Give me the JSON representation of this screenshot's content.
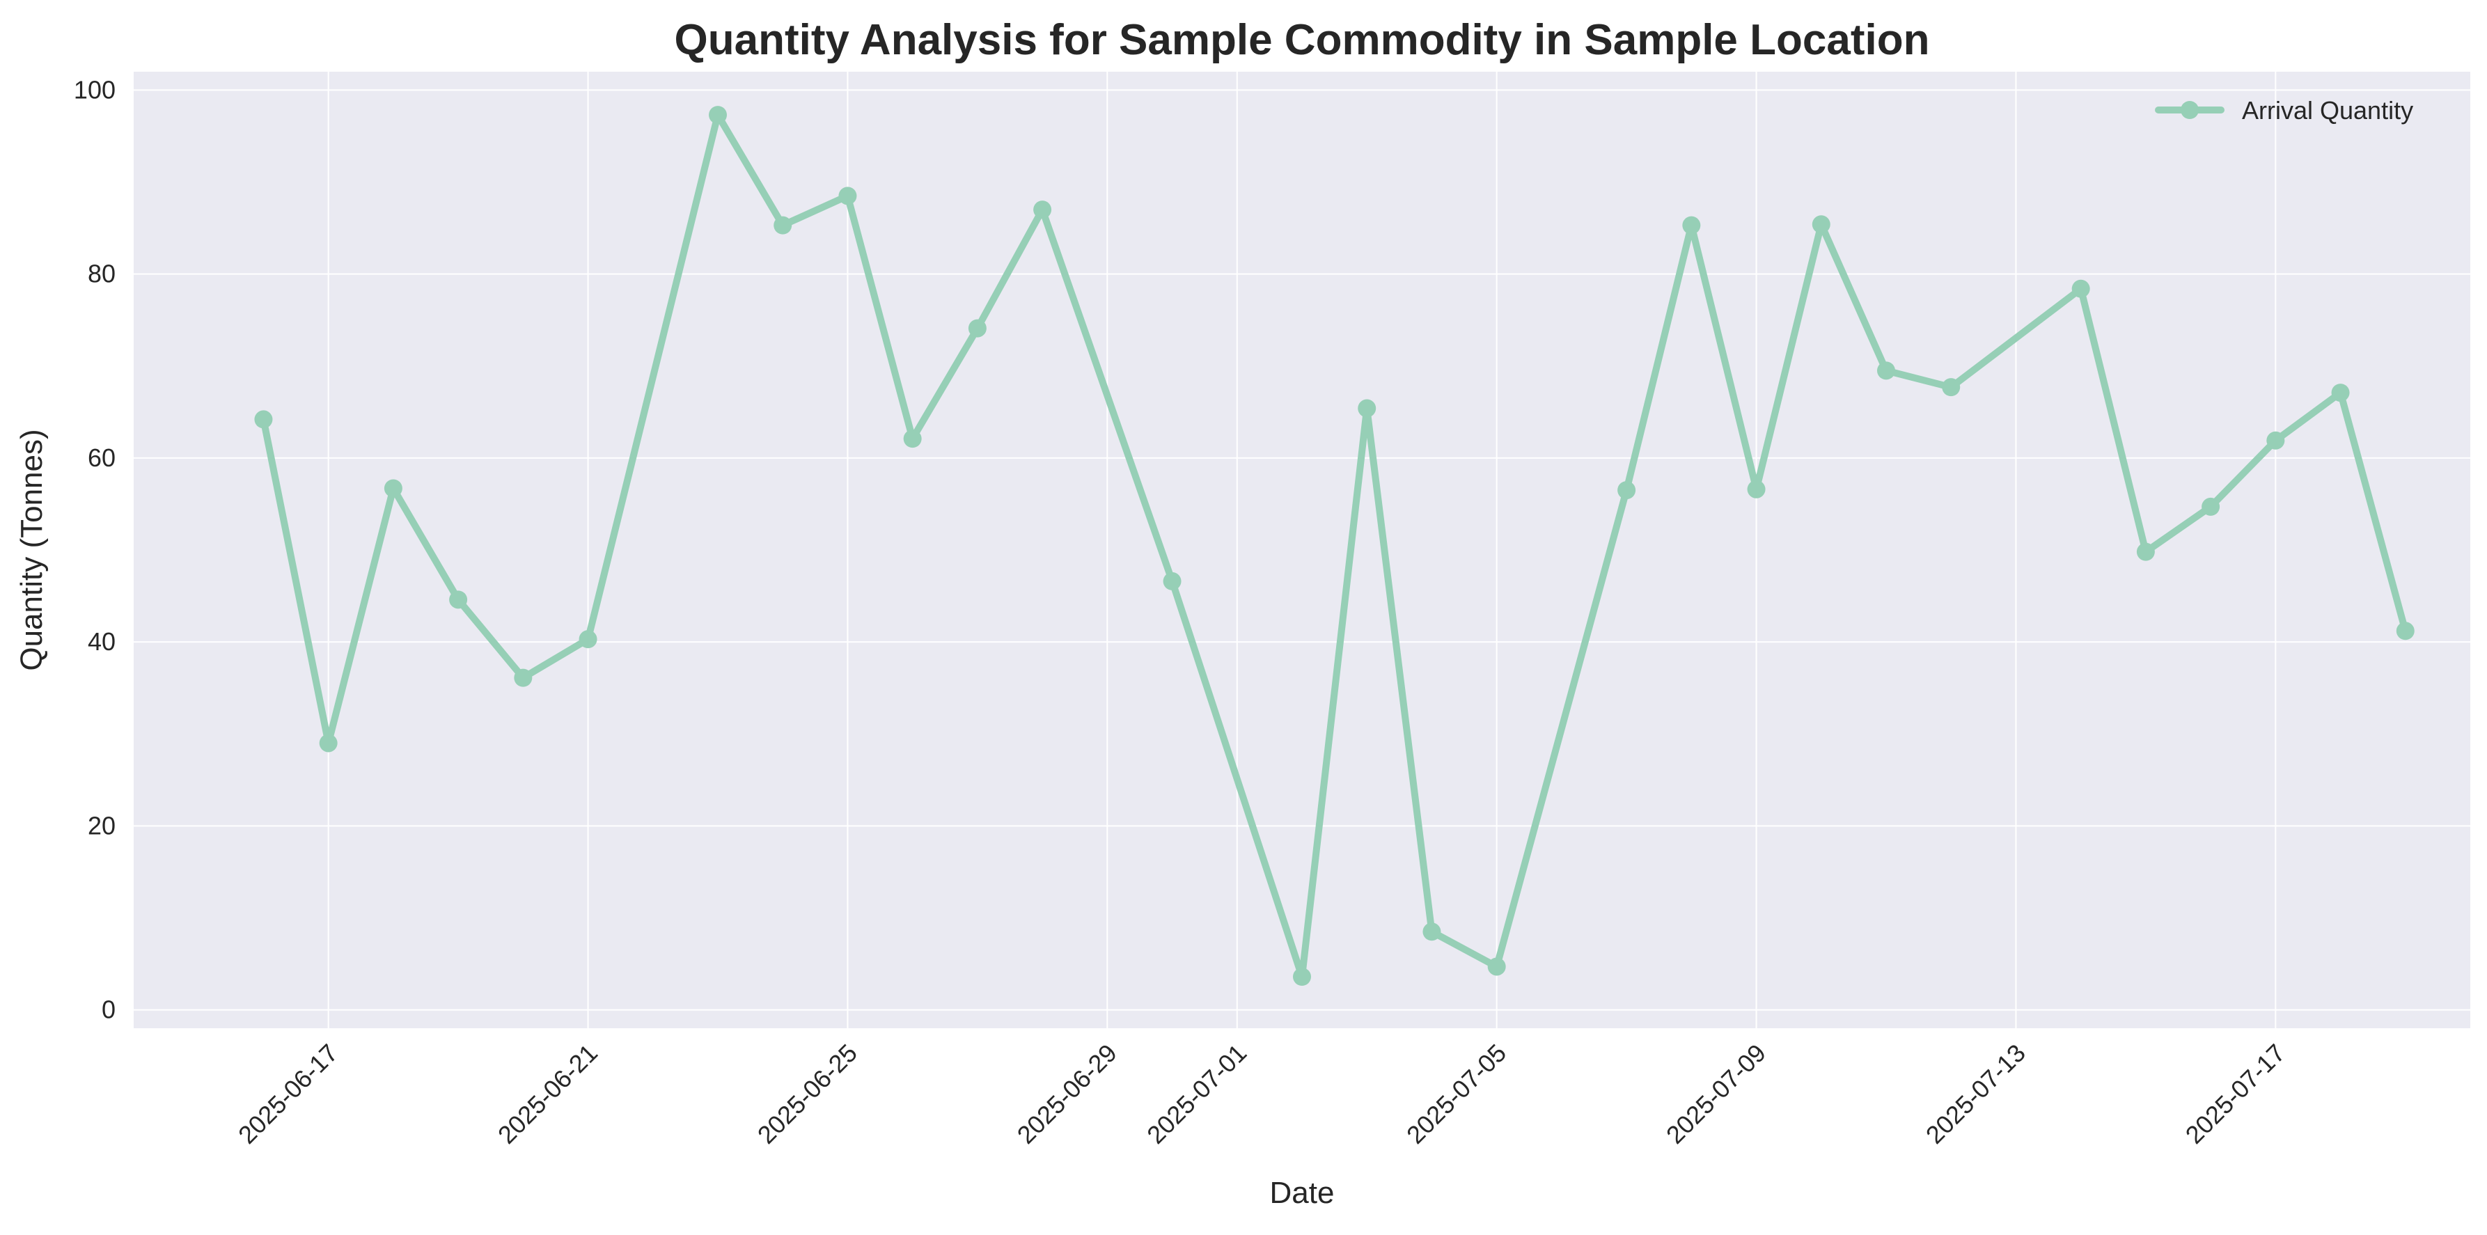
{
  "chart_data": {
    "type": "line",
    "title": "Quantity Analysis for Sample Commodity in Sample Location",
    "xlabel": "Date",
    "ylabel": "Quantity (Tonnes)",
    "x_axis": "date",
    "xlim": [
      "2025-06-14",
      "2025-07-20"
    ],
    "ylim": [
      -2,
      102
    ],
    "x_ticks": [
      "2025-06-17",
      "2025-06-21",
      "2025-06-25",
      "2025-06-29",
      "2025-07-01",
      "2025-07-05",
      "2025-07-09",
      "2025-07-13",
      "2025-07-17"
    ],
    "y_ticks": [
      0,
      20,
      40,
      60,
      80,
      100
    ],
    "grid": true,
    "legend": {
      "placement": "top-right"
    },
    "background_color": "#eaeaf2",
    "series": [
      {
        "name": "Arrival Quantity",
        "color": "#96cfb6",
        "points": [
          [
            "2025-06-16",
            64.2
          ],
          [
            "2025-06-17",
            29.0
          ],
          [
            "2025-06-18",
            56.7
          ],
          [
            "2025-06-19",
            44.6
          ],
          [
            "2025-06-20",
            36.1
          ],
          [
            "2025-06-21",
            40.3
          ],
          [
            "2025-06-23",
            97.3
          ],
          [
            "2025-06-24",
            85.3
          ],
          [
            "2025-06-25",
            88.5
          ],
          [
            "2025-06-26",
            62.1
          ],
          [
            "2025-06-27",
            74.1
          ],
          [
            "2025-06-28",
            87.0
          ],
          [
            "2025-06-30",
            46.6
          ],
          [
            "2025-07-02",
            3.6
          ],
          [
            "2025-07-03",
            65.4
          ],
          [
            "2025-07-04",
            8.5
          ],
          [
            "2025-07-05",
            4.7
          ],
          [
            "2025-07-07",
            56.5
          ],
          [
            "2025-07-08",
            85.3
          ],
          [
            "2025-07-09",
            56.6
          ],
          [
            "2025-07-10",
            85.4
          ],
          [
            "2025-07-11",
            69.5
          ],
          [
            "2025-07-12",
            67.7
          ],
          [
            "2025-07-14",
            78.4
          ],
          [
            "2025-07-15",
            49.8
          ],
          [
            "2025-07-16",
            54.7
          ],
          [
            "2025-07-17",
            61.9
          ],
          [
            "2025-07-18",
            67.1
          ],
          [
            "2025-07-19",
            41.2
          ]
        ]
      }
    ]
  }
}
